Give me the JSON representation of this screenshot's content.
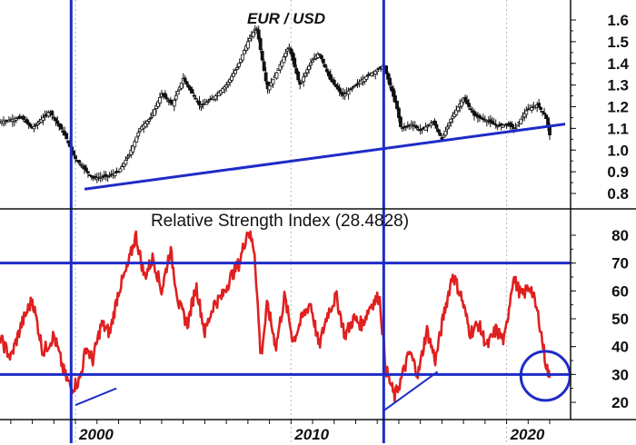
{
  "chart_data": [
    {
      "type": "candlestick",
      "title": "EUR / USD",
      "x_range": [
        1996.5,
        2022.8
      ],
      "ylim": [
        0.77,
        1.64
      ],
      "y_ticks": [
        0.8,
        0.9,
        1.0,
        1.1,
        1.2,
        1.3,
        1.4,
        1.5,
        1.6
      ],
      "y_tick_labels": [
        "0.8",
        "0.9",
        "1.0",
        "1.1",
        "1.2",
        "1.3",
        "1.4",
        "1.5",
        "1.6"
      ],
      "series": [
        {
          "x": [
            1996.5,
            1997.5,
            1998.0,
            1998.8,
            1999.5,
            2000.0,
            2000.8,
            2001.5,
            2002.0,
            2002.5,
            2003.0,
            2003.5,
            2004.0,
            2004.5,
            2005.0,
            2005.8,
            2006.5,
            2007.0,
            2007.5,
            2008.0,
            2008.4,
            2008.9,
            2009.3,
            2009.9,
            2010.4,
            2010.9,
            2011.3,
            2011.8,
            2012.4,
            2013.0,
            2013.5,
            2014.0,
            2014.3,
            2014.9,
            2015.1,
            2015.6,
            2016.0,
            2016.6,
            2017.0,
            2017.4,
            2018.0,
            2018.5,
            2019.0,
            2019.6,
            2020.0,
            2020.4,
            2020.9,
            2021.4,
            2021.8,
            2022.0
          ],
          "values": [
            1.13,
            1.15,
            1.1,
            1.18,
            1.07,
            0.96,
            0.87,
            0.88,
            0.9,
            0.98,
            1.1,
            1.15,
            1.26,
            1.21,
            1.33,
            1.2,
            1.25,
            1.3,
            1.38,
            1.5,
            1.57,
            1.28,
            1.35,
            1.48,
            1.3,
            1.4,
            1.45,
            1.33,
            1.25,
            1.3,
            1.34,
            1.37,
            1.39,
            1.2,
            1.1,
            1.12,
            1.09,
            1.13,
            1.05,
            1.14,
            1.24,
            1.16,
            1.14,
            1.11,
            1.12,
            1.1,
            1.18,
            1.21,
            1.16,
            1.07
          ]
        }
      ],
      "trendline": {
        "x": [
          2000.0,
          2022.8
        ],
        "values": [
          0.82,
          1.12
        ]
      }
    },
    {
      "type": "line",
      "title": "Relative Strength Index (28.4828)",
      "x_range": [
        1996.5,
        2022.8
      ],
      "ylim": [
        14,
        86
      ],
      "y_ticks": [
        20,
        30,
        40,
        50,
        60,
        70,
        80
      ],
      "y_tick_labels": [
        "20",
        "30",
        "40",
        "50",
        "60",
        "70",
        "80"
      ],
      "series": [
        {
          "color": "#e02020",
          "x": [
            1996.5,
            1997.0,
            1997.5,
            1998.0,
            1998.5,
            1999.0,
            1999.5,
            1999.8,
            2000.2,
            2000.5,
            2000.8,
            2001.2,
            2001.6,
            2002.0,
            2002.4,
            2002.8,
            2003.2,
            2003.6,
            2004.0,
            2004.4,
            2004.8,
            2005.2,
            2005.6,
            2006.0,
            2006.4,
            2006.8,
            2007.2,
            2007.6,
            2008.0,
            2008.3,
            2008.6,
            2008.9,
            2009.3,
            2009.7,
            2010.1,
            2010.5,
            2010.9,
            2011.3,
            2011.7,
            2012.1,
            2012.5,
            2012.9,
            2013.3,
            2013.7,
            2014.1,
            2014.4,
            2014.8,
            2015.1,
            2015.5,
            2015.9,
            2016.3,
            2016.7,
            2017.1,
            2017.5,
            2017.9,
            2018.3,
            2018.7,
            2019.1,
            2019.5,
            2019.9,
            2020.3,
            2020.7,
            2021.1,
            2021.5,
            2021.8,
            2022.0
          ],
          "values": [
            43,
            36,
            48,
            57,
            38,
            44,
            30,
            25,
            28,
            40,
            35,
            48,
            45,
            60,
            68,
            80,
            65,
            72,
            60,
            75,
            55,
            48,
            62,
            45,
            55,
            58,
            65,
            70,
            82,
            75,
            36,
            55,
            40,
            58,
            42,
            50,
            56,
            40,
            52,
            58,
            44,
            50,
            48,
            55,
            58,
            32,
            22,
            28,
            38,
            30,
            46,
            35,
            52,
            66,
            58,
            45,
            48,
            40,
            46,
            42,
            65,
            58,
            62,
            50,
            35,
            28
          ]
        }
      ],
      "horizontal_lines": [
        70,
        30
      ],
      "trendlines": [
        {
          "x": [
            2000.0,
            2001.9
          ],
          "values": [
            19,
            25
          ]
        },
        {
          "x": [
            2014.3,
            2016.8
          ],
          "values": [
            17,
            31
          ]
        }
      ],
      "circle_annotation": {
        "x": 2021.8,
        "value": 29.5
      }
    }
  ],
  "x_axis": {
    "tick_labels": [
      "2000",
      "2010",
      "2020"
    ],
    "tick_values": [
      2000,
      2010,
      2020
    ]
  },
  "vertical_markers": [
    1999.8,
    2014.3
  ],
  "colors": {
    "annotation": "#1e2bc8",
    "rsi_line": "#e02020",
    "price": "#111111",
    "grid": "#b8b8b8"
  }
}
